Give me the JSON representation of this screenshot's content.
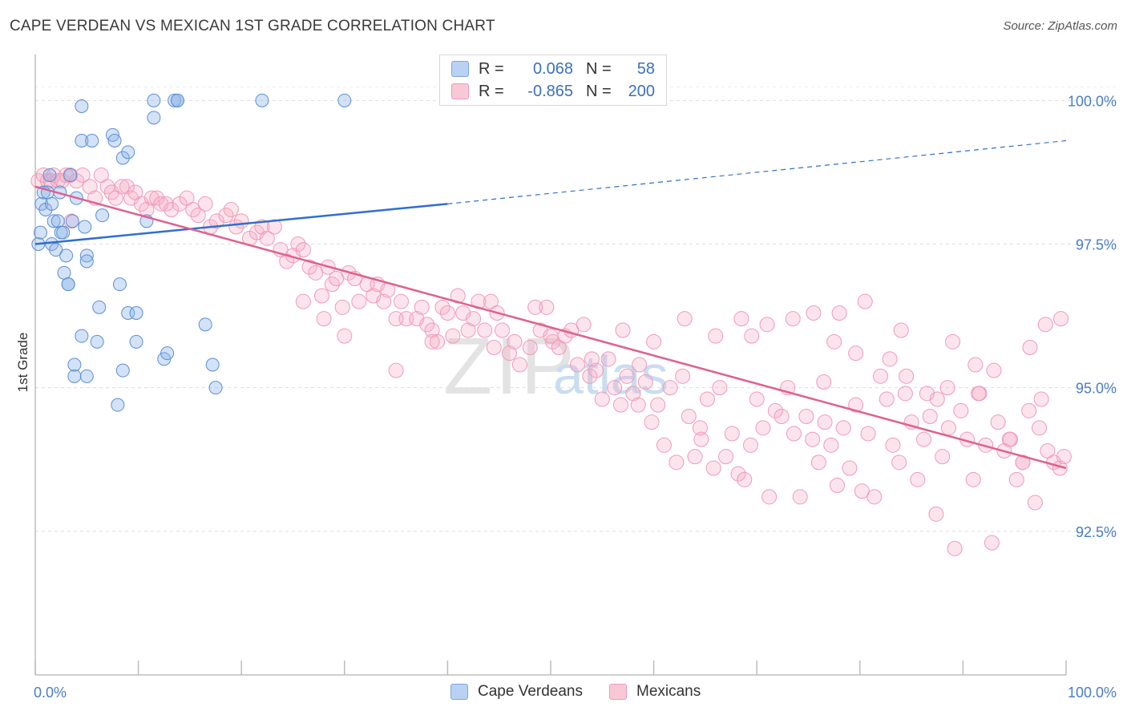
{
  "title": "CAPE VERDEAN VS MEXICAN 1ST GRADE CORRELATION CHART",
  "source": "Source: ZipAtlas.com",
  "watermark": {
    "zip": "ZIP",
    "atlas": "atlas"
  },
  "legend_top": [
    {
      "r_label": "R =",
      "r_value": "0.068",
      "n_label": "N =",
      "n_value": "58"
    },
    {
      "r_label": "R =",
      "r_value": "-0.865",
      "n_label": "N =",
      "n_value": "200"
    }
  ],
  "legend_bottom": [
    {
      "label": "Cape Verdeans"
    },
    {
      "label": "Mexicans"
    }
  ],
  "chart_data": {
    "type": "scatter",
    "title": "CAPE VERDEAN VS MEXICAN 1ST GRADE CORRELATION CHART",
    "xlabel": "",
    "ylabel": "1st Grade",
    "xlim": [
      0,
      100
    ],
    "ylim": [
      90,
      100.8
    ],
    "x_tick_labels": [
      "0.0%",
      "100.0%"
    ],
    "y_ticks": [
      92.5,
      95.0,
      97.5,
      100.0
    ],
    "y_tick_labels": [
      "92.5%",
      "95.0%",
      "97.5%",
      "100.0%"
    ],
    "grid": true,
    "legend_position": "top-center",
    "colors": {
      "cape_verdeans": "#7aa7e0",
      "mexicans": "#f29ab5",
      "blue_line": "#2f6fcf",
      "pink_line": "#e0608f"
    },
    "series": [
      {
        "name": "Cape Verdeans",
        "R": 0.068,
        "N": 58,
        "trend": {
          "x": [
            0,
            40
          ],
          "y": [
            97.5,
            98.2
          ],
          "dashed_x": [
            40,
            100
          ],
          "dashed_y": [
            98.2,
            99.3
          ]
        },
        "points": [
          [
            0.3,
            97.5
          ],
          [
            0.5,
            97.7
          ],
          [
            0.6,
            98.2
          ],
          [
            0.8,
            98.4
          ],
          [
            1.0,
            98.1
          ],
          [
            1.2,
            98.4
          ],
          [
            1.4,
            98.7
          ],
          [
            1.6,
            97.5
          ],
          [
            1.6,
            98.2
          ],
          [
            1.8,
            97.9
          ],
          [
            2.0,
            97.4
          ],
          [
            2.2,
            97.9
          ],
          [
            2.4,
            98.4
          ],
          [
            2.5,
            97.7
          ],
          [
            2.7,
            97.7
          ],
          [
            2.8,
            97.0
          ],
          [
            3.0,
            97.3
          ],
          [
            3.2,
            96.8
          ],
          [
            3.2,
            96.8
          ],
          [
            3.4,
            98.7
          ],
          [
            3.6,
            97.9
          ],
          [
            3.8,
            95.2
          ],
          [
            3.8,
            95.4
          ],
          [
            4.0,
            98.3
          ],
          [
            4.5,
            95.9
          ],
          [
            4.5,
            99.9
          ],
          [
            4.5,
            99.3
          ],
          [
            4.8,
            97.8
          ],
          [
            5.0,
            97.3
          ],
          [
            5.0,
            97.2
          ],
          [
            5.0,
            95.2
          ],
          [
            5.5,
            99.3
          ],
          [
            6.0,
            95.8
          ],
          [
            6.2,
            96.4
          ],
          [
            6.5,
            98.0
          ],
          [
            7.5,
            99.4
          ],
          [
            7.7,
            99.3
          ],
          [
            8.0,
            94.7
          ],
          [
            8.2,
            96.8
          ],
          [
            8.5,
            99.0
          ],
          [
            8.5,
            95.3
          ],
          [
            9.0,
            99.1
          ],
          [
            9.0,
            96.3
          ],
          [
            9.8,
            96.3
          ],
          [
            9.8,
            95.8
          ],
          [
            10.8,
            97.9
          ],
          [
            11.5,
            99.7
          ],
          [
            11.5,
            100.0
          ],
          [
            12.5,
            95.5
          ],
          [
            12.8,
            95.6
          ],
          [
            13.5,
            100.0
          ],
          [
            13.8,
            100.0
          ],
          [
            13.8,
            100.0
          ],
          [
            16.5,
            96.1
          ],
          [
            17.2,
            95.4
          ],
          [
            17.5,
            95.0
          ],
          [
            22.0,
            100.0
          ],
          [
            30.0,
            100.0
          ]
        ]
      },
      {
        "name": "Mexicans",
        "R": -0.865,
        "N": 200,
        "trend": {
          "x": [
            0,
            100
          ],
          "y": [
            98.5,
            93.6
          ]
        },
        "points": [
          [
            0.3,
            98.6
          ],
          [
            0.8,
            98.7
          ],
          [
            1.2,
            98.6
          ],
          [
            1.5,
            98.6
          ],
          [
            1.8,
            98.7
          ],
          [
            2.2,
            98.6
          ],
          [
            2.6,
            98.6
          ],
          [
            3.0,
            98.7
          ],
          [
            3.4,
            98.7
          ],
          [
            4.0,
            98.6
          ],
          [
            4.6,
            98.7
          ],
          [
            5.3,
            98.5
          ],
          [
            5.8,
            98.3
          ],
          [
            6.4,
            98.7
          ],
          [
            7.0,
            98.5
          ],
          [
            7.4,
            98.4
          ],
          [
            7.8,
            98.3
          ],
          [
            8.4,
            98.5
          ],
          [
            8.9,
            98.5
          ],
          [
            9.3,
            98.3
          ],
          [
            9.7,
            98.4
          ],
          [
            10.3,
            98.2
          ],
          [
            10.8,
            98.1
          ],
          [
            11.3,
            98.3
          ],
          [
            11.8,
            98.3
          ],
          [
            12.2,
            98.2
          ],
          [
            12.7,
            98.2
          ],
          [
            13.2,
            98.1
          ],
          [
            14.0,
            98.2
          ],
          [
            14.7,
            98.3
          ],
          [
            15.3,
            98.1
          ],
          [
            15.8,
            98.0
          ],
          [
            3.5,
            97.9
          ],
          [
            16.5,
            98.2
          ],
          [
            17.0,
            97.8
          ],
          [
            17.6,
            97.9
          ],
          [
            18.5,
            98.0
          ],
          [
            19.0,
            98.1
          ],
          [
            19.5,
            97.8
          ],
          [
            20.0,
            97.9
          ],
          [
            20.8,
            97.6
          ],
          [
            21.5,
            97.7
          ],
          [
            22.0,
            97.8
          ],
          [
            22.5,
            97.6
          ],
          [
            23.2,
            97.8
          ],
          [
            23.8,
            97.4
          ],
          [
            24.4,
            97.2
          ],
          [
            25.0,
            97.3
          ],
          [
            25.5,
            97.5
          ],
          [
            26.0,
            97.4
          ],
          [
            26.6,
            97.1
          ],
          [
            27.2,
            97.0
          ],
          [
            27.8,
            96.6
          ],
          [
            28.4,
            97.1
          ],
          [
            28.8,
            96.8
          ],
          [
            29.2,
            96.9
          ],
          [
            29.8,
            96.4
          ],
          [
            30.4,
            97.0
          ],
          [
            31.0,
            96.9
          ],
          [
            31.4,
            96.5
          ],
          [
            32.2,
            96.8
          ],
          [
            32.8,
            96.6
          ],
          [
            33.2,
            96.8
          ],
          [
            33.8,
            96.5
          ],
          [
            34.2,
            96.7
          ],
          [
            35.0,
            96.2
          ],
          [
            35.5,
            96.5
          ],
          [
            36.0,
            96.2
          ],
          [
            37.0,
            96.2
          ],
          [
            37.5,
            96.4
          ],
          [
            38.0,
            96.1
          ],
          [
            38.5,
            96.0
          ],
          [
            39.0,
            95.8
          ],
          [
            39.5,
            96.4
          ],
          [
            40.0,
            96.3
          ],
          [
            40.5,
            95.9
          ],
          [
            41.0,
            96.6
          ],
          [
            41.5,
            96.3
          ],
          [
            42.0,
            96.0
          ],
          [
            42.5,
            96.2
          ],
          [
            43.0,
            96.5
          ],
          [
            43.6,
            96.0
          ],
          [
            44.2,
            96.5
          ],
          [
            44.8,
            96.3
          ],
          [
            45.3,
            96.0
          ],
          [
            46.0,
            95.6
          ],
          [
            46.5,
            95.8
          ],
          [
            47.0,
            95.4
          ],
          [
            48.0,
            95.7
          ],
          [
            48.5,
            96.4
          ],
          [
            49.0,
            96.0
          ],
          [
            49.6,
            96.4
          ],
          [
            50.2,
            95.8
          ],
          [
            50.8,
            95.7
          ],
          [
            51.4,
            95.9
          ],
          [
            52.0,
            96.0
          ],
          [
            52.6,
            95.4
          ],
          [
            53.2,
            96.1
          ],
          [
            53.8,
            95.2
          ],
          [
            54.4,
            95.3
          ],
          [
            55.0,
            94.8
          ],
          [
            55.6,
            95.5
          ],
          [
            56.2,
            95.0
          ],
          [
            56.8,
            94.7
          ],
          [
            57.4,
            95.2
          ],
          [
            58.0,
            94.9
          ],
          [
            58.6,
            95.4
          ],
          [
            59.2,
            95.1
          ],
          [
            59.8,
            94.4
          ],
          [
            60.4,
            94.7
          ],
          [
            61.0,
            94.0
          ],
          [
            61.6,
            95.0
          ],
          [
            62.2,
            93.7
          ],
          [
            62.8,
            95.2
          ],
          [
            63.4,
            94.5
          ],
          [
            64.0,
            93.8
          ],
          [
            64.6,
            94.1
          ],
          [
            65.2,
            94.8
          ],
          [
            65.8,
            93.6
          ],
          [
            66.4,
            95.0
          ],
          [
            67.0,
            93.8
          ],
          [
            67.6,
            94.2
          ],
          [
            68.2,
            93.5
          ],
          [
            68.8,
            93.4
          ],
          [
            69.4,
            94.0
          ],
          [
            70.0,
            94.8
          ],
          [
            70.6,
            94.3
          ],
          [
            71.2,
            93.1
          ],
          [
            71.8,
            94.6
          ],
          [
            72.4,
            94.5
          ],
          [
            73.0,
            95.0
          ],
          [
            73.6,
            94.2
          ],
          [
            74.2,
            93.1
          ],
          [
            74.8,
            94.5
          ],
          [
            75.4,
            94.1
          ],
          [
            76.0,
            93.7
          ],
          [
            76.6,
            94.4
          ],
          [
            77.2,
            94.0
          ],
          [
            77.8,
            93.3
          ],
          [
            78.4,
            94.3
          ],
          [
            79.0,
            93.6
          ],
          [
            79.6,
            94.7
          ],
          [
            80.2,
            93.2
          ],
          [
            80.8,
            94.2
          ],
          [
            81.4,
            93.1
          ],
          [
            82.0,
            95.2
          ],
          [
            82.6,
            94.8
          ],
          [
            83.2,
            94.0
          ],
          [
            83.8,
            93.7
          ],
          [
            84.4,
            94.9
          ],
          [
            85.0,
            94.4
          ],
          [
            85.6,
            93.4
          ],
          [
            86.2,
            94.1
          ],
          [
            86.8,
            94.5
          ],
          [
            87.4,
            92.8
          ],
          [
            88.0,
            93.8
          ],
          [
            88.6,
            94.3
          ],
          [
            89.2,
            92.2
          ],
          [
            89.8,
            94.6
          ],
          [
            90.4,
            94.1
          ],
          [
            91.0,
            93.4
          ],
          [
            91.6,
            94.9
          ],
          [
            92.2,
            94.0
          ],
          [
            92.8,
            92.3
          ],
          [
            93.4,
            94.4
          ],
          [
            94.0,
            93.9
          ],
          [
            94.6,
            94.1
          ],
          [
            95.2,
            93.4
          ],
          [
            95.8,
            93.7
          ],
          [
            96.4,
            94.6
          ],
          [
            97.0,
            93.0
          ],
          [
            97.6,
            94.8
          ],
          [
            98.2,
            93.9
          ],
          [
            98.8,
            93.7
          ],
          [
            99.4,
            93.6
          ],
          [
            99.8,
            93.8
          ],
          [
            95.8,
            93.7
          ],
          [
            97.4,
            94.3
          ],
          [
            77.5,
            95.8
          ],
          [
            79.6,
            95.6
          ],
          [
            82.9,
            95.5
          ],
          [
            84.5,
            95.2
          ],
          [
            86.5,
            94.9
          ],
          [
            88.5,
            95.0
          ],
          [
            91.2,
            95.4
          ],
          [
            93.0,
            95.3
          ],
          [
            96.5,
            95.7
          ],
          [
            98.0,
            96.1
          ],
          [
            57.0,
            96.0
          ],
          [
            60.0,
            95.8
          ],
          [
            63.0,
            96.2
          ],
          [
            66.0,
            95.9
          ],
          [
            68.5,
            96.2
          ],
          [
            71.0,
            96.1
          ],
          [
            73.5,
            96.2
          ],
          [
            75.5,
            96.3
          ],
          [
            78.0,
            96.3
          ],
          [
            80.5,
            96.5
          ],
          [
            84.0,
            96.0
          ],
          [
            89.0,
            95.8
          ],
          [
            26.0,
            96.5
          ],
          [
            28.0,
            96.2
          ],
          [
            30.0,
            95.9
          ],
          [
            35.0,
            95.3
          ],
          [
            38.5,
            95.8
          ],
          [
            44.5,
            95.7
          ],
          [
            50.0,
            95.9
          ],
          [
            54.0,
            95.5
          ],
          [
            58.5,
            94.7
          ],
          [
            64.5,
            94.3
          ],
          [
            69.5,
            95.9
          ],
          [
            76.5,
            95.1
          ],
          [
            87.5,
            94.8
          ],
          [
            94.5,
            94.1
          ],
          [
            99.5,
            96.2
          ],
          [
            91.5,
            94.9
          ]
        ]
      }
    ]
  }
}
